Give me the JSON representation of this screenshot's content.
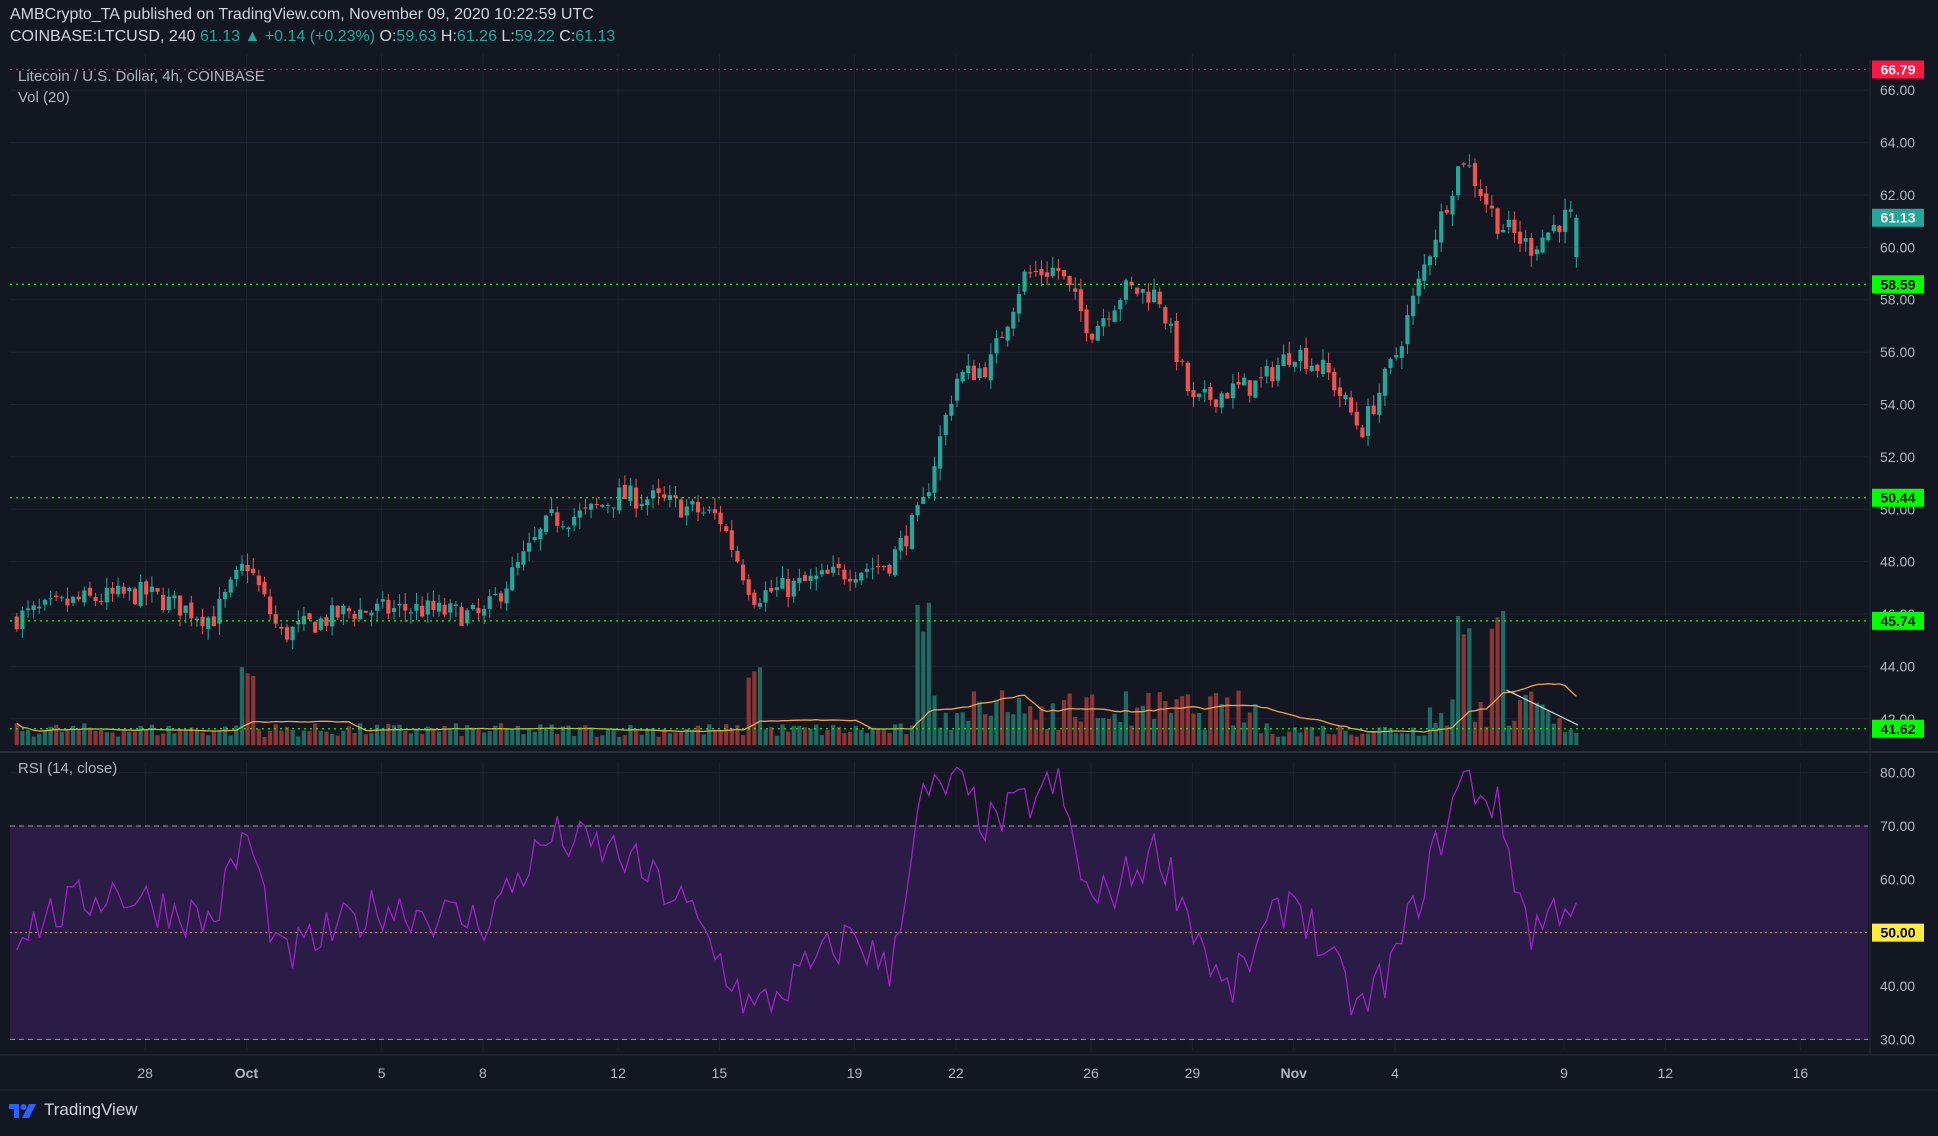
{
  "header": {
    "publisher": "AMBCrypto_TA published on TradingView.com, November 09, 2020 10:22:59 UTC",
    "symbol": "COINBASE:LTCUSD, 240",
    "last": "61.13",
    "change": "▲ +0.14 (+0.23%)",
    "o_label": "O:",
    "o": "59.63",
    "h_label": "H:",
    "h": "61.26",
    "l_label": "L:",
    "l": "59.22",
    "c_label": "C:",
    "c": "61.13"
  },
  "legend": {
    "main": "Litecoin / U.S. Dollar, 4h, COINBASE",
    "vol": "Vol (20)",
    "rsi": "RSI (14, close)"
  },
  "footer": {
    "brand": "TradingView"
  },
  "colors": {
    "up": "#26a69a",
    "down": "#ef5350",
    "level": "#00ff00",
    "resistance": "#ff1744",
    "rsi_line": "#a020c8",
    "rsi_band": "#2a1c46",
    "vol_ma": "#f0a050",
    "price_tag": "#26a69a"
  },
  "chart_data": [
    {
      "type": "candlestick",
      "title": "Litecoin / U.S. Dollar, 4h, COINBASE",
      "ylim": [
        41.0,
        67.0
      ],
      "y_ticks": [
        42,
        44,
        46,
        48,
        50,
        52,
        54,
        56,
        58,
        60,
        62,
        64,
        66
      ],
      "x_ticks": [
        "28",
        "Oct",
        "5",
        "8",
        "12",
        "15",
        "19",
        "22",
        "26",
        "29",
        "Nov",
        "4",
        "9",
        "12",
        "16"
      ],
      "x_tick_dates": [
        "2020-09-28",
        "2020-10-01",
        "2020-10-05",
        "2020-10-08",
        "2020-10-12",
        "2020-10-15",
        "2020-10-19",
        "2020-10-22",
        "2020-10-26",
        "2020-10-29",
        "2020-11-01",
        "2020-11-04",
        "2020-11-09",
        "2020-11-12",
        "2020-11-16"
      ],
      "x_range": [
        "2020-09-24",
        "2020-11-18"
      ],
      "key_points": {
        "date": [
          "2020-09-24",
          "2020-09-26",
          "2020-09-28",
          "2020-09-30",
          "2020-10-01",
          "2020-10-02",
          "2020-10-04",
          "2020-10-06",
          "2020-10-08",
          "2020-10-10",
          "2020-10-11",
          "2020-10-12",
          "2020-10-13",
          "2020-10-15",
          "2020-10-16",
          "2020-10-17",
          "2020-10-19",
          "2020-10-20",
          "2020-10-21",
          "2020-10-22",
          "2020-10-23",
          "2020-10-24",
          "2020-10-25",
          "2020-10-26",
          "2020-10-27",
          "2020-10-28",
          "2020-10-29",
          "2020-10-30",
          "2020-10-31",
          "2020-11-01",
          "2020-11-02",
          "2020-11-03",
          "2020-11-04",
          "2020-11-05",
          "2020-11-06",
          "2020-11-07",
          "2020-11-08",
          "2020-11-09"
        ],
        "close": [
          45.8,
          46.5,
          46.8,
          45.8,
          48.0,
          45.2,
          46.1,
          46.2,
          45.9,
          49.6,
          49.8,
          50.5,
          50.4,
          49.7,
          46.7,
          47.0,
          47.7,
          47.9,
          50.0,
          55.0,
          55.5,
          58.9,
          59.2,
          56.8,
          58.4,
          58.2,
          54.0,
          54.5,
          54.8,
          56.1,
          55.2,
          53.0,
          55.8,
          59.8,
          63.5,
          61.0,
          60.0,
          61.13
        ]
      },
      "horizontal_levels": [
        {
          "value": 66.79,
          "label": "66.79",
          "color": "#ff1744"
        },
        {
          "value": 58.59,
          "label": "58.59",
          "color": "#00ff00"
        },
        {
          "value": 50.44,
          "label": "50.44",
          "color": "#00ff00"
        },
        {
          "value": 45.74,
          "label": "45.74",
          "color": "#00ff00"
        },
        {
          "value": 41.62,
          "label": "41.62",
          "color": "#00ff00"
        }
      ],
      "last_price": {
        "value": 61.13,
        "label": "61.13"
      }
    },
    {
      "type": "bar",
      "title": "Vol (20)",
      "spikes": [
        {
          "date": "2020-10-01",
          "relative": 0.55
        },
        {
          "date": "2020-10-16",
          "relative": 0.6
        },
        {
          "date": "2020-10-21",
          "relative": 1.0
        },
        {
          "date": "2020-11-06",
          "relative": 0.95
        },
        {
          "date": "2020-11-07",
          "relative": 0.98
        }
      ]
    },
    {
      "type": "line",
      "title": "RSI (14, close)",
      "ylim": [
        28,
        82
      ],
      "y_ticks": [
        30,
        40,
        50,
        60,
        70,
        80
      ],
      "band": [
        30,
        70
      ],
      "midline": {
        "value": 50,
        "label": "50.00"
      },
      "key_points": {
        "date": [
          "2020-09-24",
          "2020-09-27",
          "2020-09-30",
          "2020-10-01",
          "2020-10-02",
          "2020-10-05",
          "2020-10-08",
          "2020-10-10",
          "2020-10-12",
          "2020-10-14",
          "2020-10-16",
          "2020-10-17",
          "2020-10-19",
          "2020-10-20",
          "2020-10-21",
          "2020-10-22",
          "2020-10-23",
          "2020-10-25",
          "2020-10-26",
          "2020-10-27",
          "2020-10-28",
          "2020-10-30",
          "2020-11-01",
          "2020-11-02",
          "2020-11-03",
          "2020-11-04",
          "2020-11-05",
          "2020-11-06",
          "2020-11-07",
          "2020-11-08",
          "2020-11-09"
        ],
        "rsi": [
          50,
          58,
          52,
          69,
          45,
          55,
          52,
          68,
          65,
          55,
          35,
          40,
          50,
          42,
          75,
          78,
          70,
          78,
          55,
          60,
          66,
          38,
          58,
          45,
          35,
          45,
          62,
          79,
          74,
          50,
          56
        ]
      }
    }
  ]
}
